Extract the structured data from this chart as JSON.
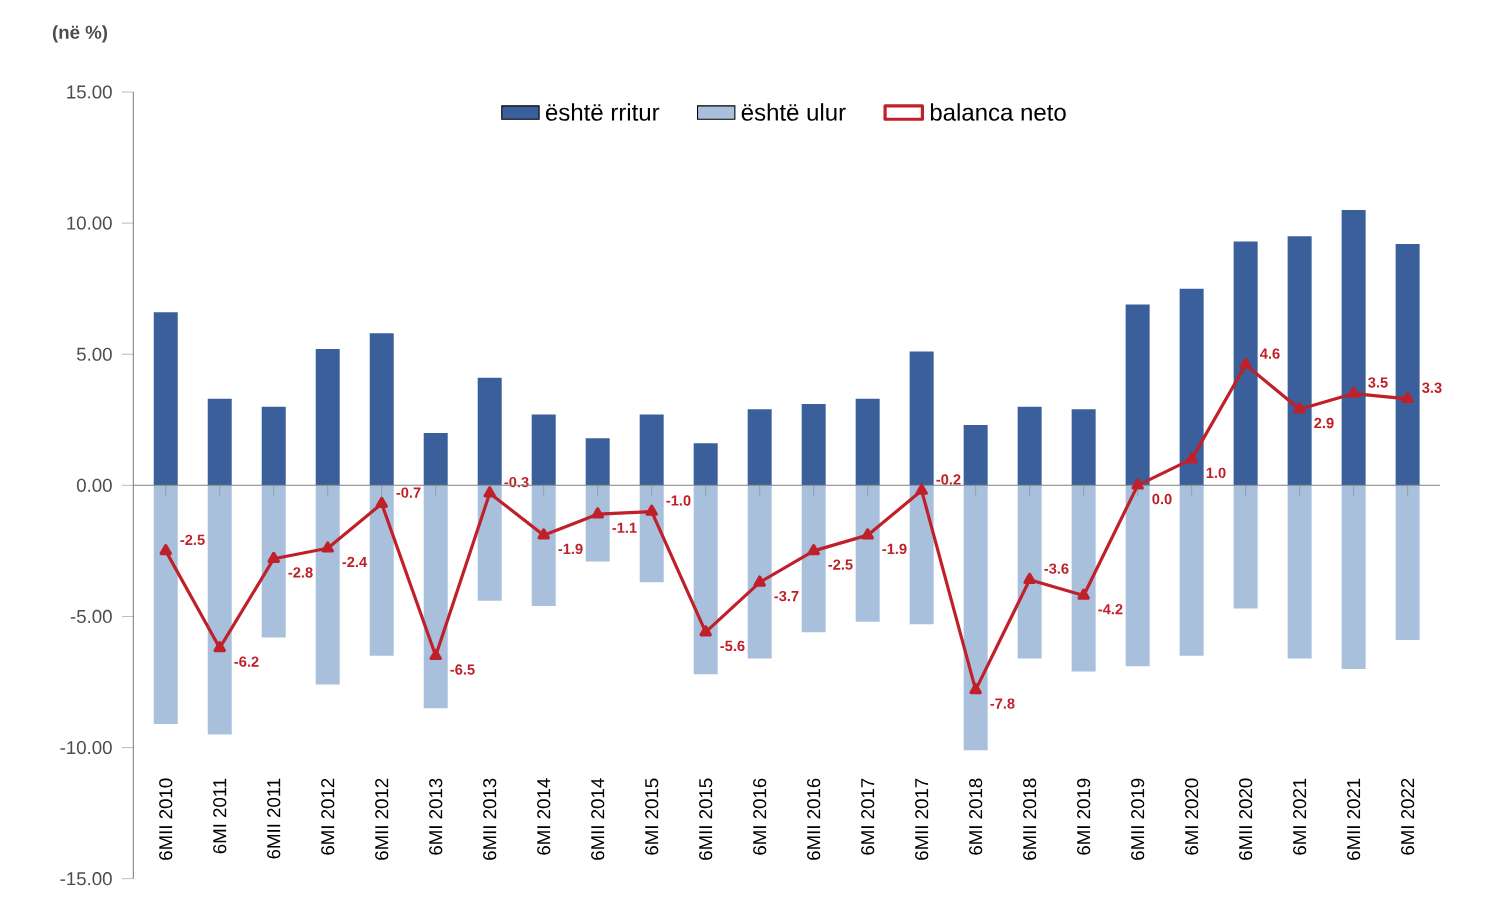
{
  "chart_data": {
    "type": "bar",
    "ylabel": "(në %)",
    "categories": [
      "6MII 2010",
      "6MI 2011",
      "6MII 2011",
      "6MI 2012",
      "6MII 2012",
      "6MI 2013",
      "6MII 2013",
      "6MI 2014",
      "6MII 2014",
      "6MI 2015",
      "6MII 2015",
      "6MI 2016",
      "6MII 2016",
      "6MI 2017",
      "6MII 2017",
      "6MI 2018",
      "6MII 2018",
      "6MI 2019",
      "6MII 2019",
      "6MI 2020",
      "6MII 2020",
      "6MI 2021",
      "6MII 2021",
      "6MI 2022"
    ],
    "series": [
      {
        "name": "është rritur",
        "color": "#3a5f9a",
        "values": [
          6.6,
          3.3,
          3.0,
          5.2,
          5.8,
          2.0,
          4.1,
          2.7,
          1.8,
          2.7,
          1.6,
          2.9,
          3.1,
          3.3,
          5.1,
          2.3,
          3.0,
          2.9,
          6.9,
          7.5,
          9.3,
          9.5,
          10.5,
          9.2
        ]
      },
      {
        "name": "është ulur",
        "color": "#a9c0dc",
        "values": [
          -9.1,
          -9.5,
          -5.8,
          -7.6,
          -6.5,
          -8.5,
          -4.4,
          -4.6,
          -2.9,
          -3.7,
          -7.2,
          -6.6,
          -5.6,
          -5.2,
          -5.3,
          -10.1,
          -6.6,
          -7.1,
          -6.9,
          -6.5,
          -4.7,
          -6.6,
          -7.0,
          -5.9
        ]
      },
      {
        "name": "balanca neto",
        "type": "line",
        "color": "#c0202a",
        "marker": "triangle",
        "values": [
          -2.5,
          -6.2,
          -2.8,
          -2.4,
          -0.7,
          -6.5,
          -0.3,
          -1.9,
          -1.1,
          -1.0,
          -5.6,
          -3.7,
          -2.5,
          -1.9,
          -0.2,
          -7.8,
          -3.6,
          -4.2,
          0.0,
          1.0,
          4.6,
          2.9,
          3.5,
          3.3
        ],
        "value_labels": [
          "-2.5",
          "-6.2",
          "-2.8",
          "-2.4",
          "-0.7",
          "-6.5",
          "-0.3",
          "-1.9",
          "-1.1",
          "-1.0",
          "-5.6",
          "-3.7",
          "-2.5",
          "-1.9",
          "-0.2",
          "-7.8",
          "-3.6",
          "-4.2",
          "0.0",
          "1.0",
          "4.6",
          "2.9",
          "3.5",
          "3.3"
        ]
      }
    ],
    "ylim": [
      -15,
      15
    ],
    "yticks": [
      {
        "value": -15,
        "label": "-15.00"
      },
      {
        "value": -10,
        "label": "-10.00"
      },
      {
        "value": -5,
        "label": "-5.00"
      },
      {
        "value": 0,
        "label": "0.00"
      },
      {
        "value": 5,
        "label": "5.00"
      },
      {
        "value": 10,
        "label": "10.00"
      },
      {
        "value": 15,
        "label": "15.00"
      }
    ],
    "legend": "top",
    "stacked": true
  }
}
